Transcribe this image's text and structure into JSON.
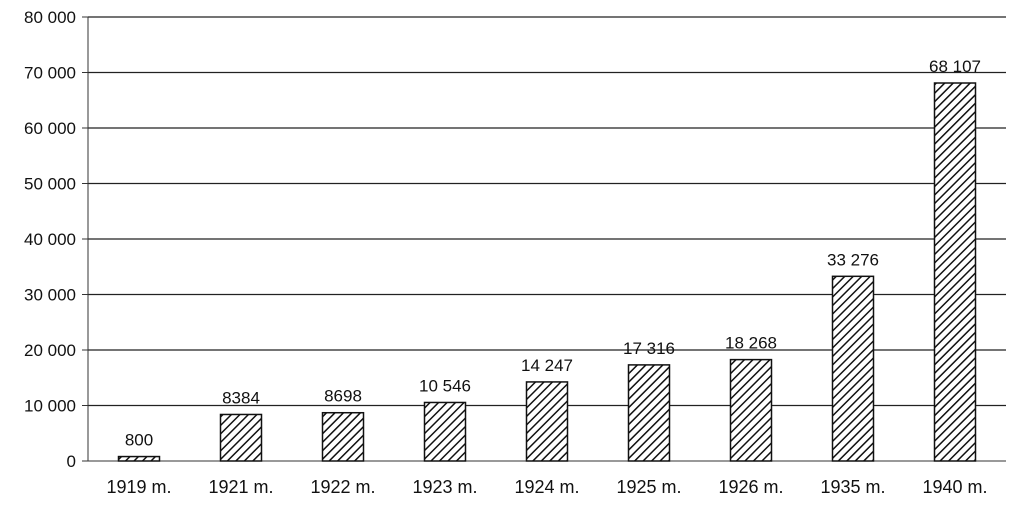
{
  "chart_data": {
    "type": "bar",
    "title": "",
    "xlabel": "",
    "ylabel": "",
    "categories": [
      "1919 m.",
      "1921 m.",
      "1922 m.",
      "1923 m.",
      "1924 m.",
      "1925 m.",
      "1926 m.",
      "1935 m.",
      "1940 m."
    ],
    "values": [
      800,
      8384,
      8698,
      10546,
      14247,
      17316,
      18268,
      33276,
      68107
    ],
    "data_labels": [
      "800",
      "8384",
      "8698",
      "10 546",
      "14 247",
      "17 316",
      "18 268",
      "33 276",
      "68 107"
    ],
    "ylim": [
      0,
      80000
    ],
    "yticks": [
      0,
      10000,
      20000,
      30000,
      40000,
      50000,
      60000,
      70000,
      80000
    ],
    "ytick_labels": [
      "0",
      "10 000",
      "20 000",
      "30 000",
      "40 000",
      "50 000",
      "60 000",
      "70 000",
      "80 000"
    ],
    "grid": true,
    "bar_fill": "hatched",
    "colors": {
      "bar_stroke": "#111111",
      "hatch": "#111111",
      "grid": "#222222",
      "axis": "#333333"
    }
  }
}
